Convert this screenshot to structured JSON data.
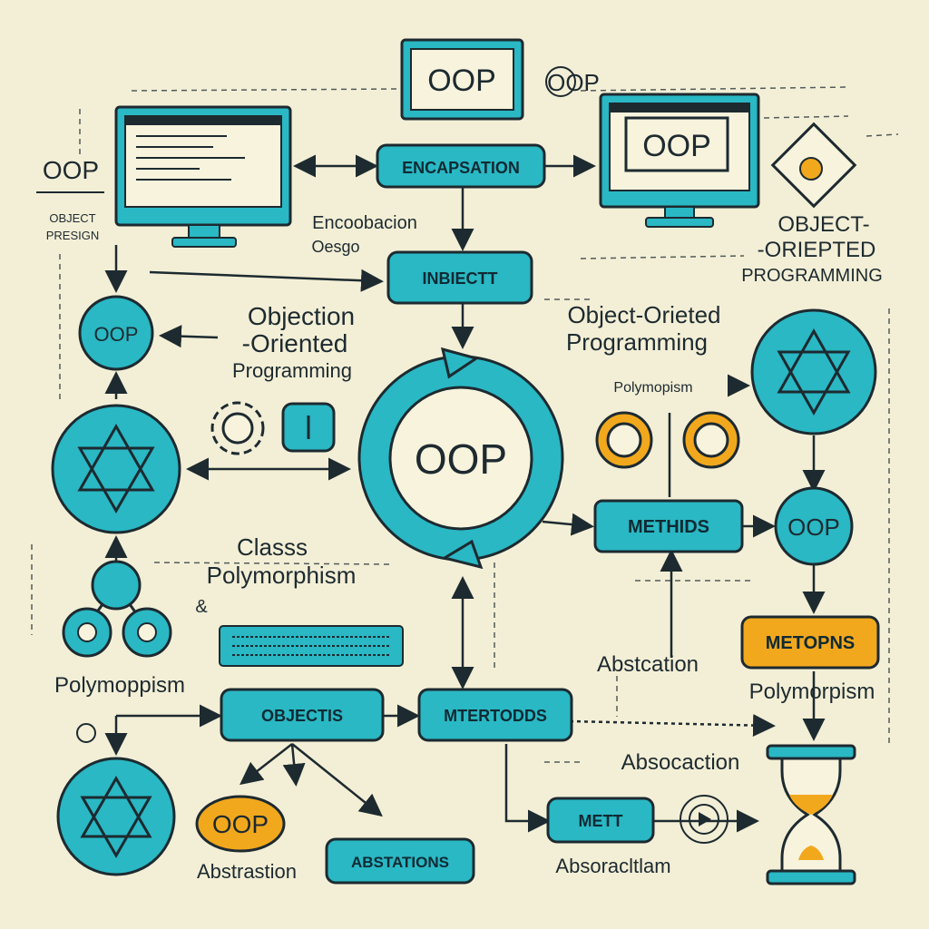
{
  "colors": {
    "background": "#f3efd6",
    "teal": "#29b8c4",
    "teal_dark": "#0f6f78",
    "orange": "#f2a81d",
    "ink": "#1d2a30"
  },
  "monitors": {
    "top_center": "OOP",
    "right": "OOP"
  },
  "top_small_label": "OOP",
  "left_top": {
    "title": "OOP",
    "line1": "OBJECT",
    "line2": "PRESIGN"
  },
  "encapsulation_pill": "ENCAPSATION",
  "encapsulation_caption": {
    "line1": "Encoobacion",
    "line2": "Oesgo"
  },
  "inbiectt_pill": "INBIECTT",
  "right_heading": {
    "line1": "OBJECT-",
    "line2": "-ORIEPTED",
    "line3": "PROGRAMMING"
  },
  "left_node_oop": "OOP",
  "objection_text": {
    "line1": "Objection",
    "line2": "-Oriented",
    "line3": "Programming"
  },
  "center_text": {
    "line1": "Object-Orieted",
    "line2": "Programming"
  },
  "center_circle": "OOP",
  "polymorphism_small": "Polymopism",
  "classes_text": {
    "line1": "Classs",
    "line2": "Polymorphism",
    "line3": "&"
  },
  "methids_pill": "METHIDS",
  "right_oop_circle": "OOP",
  "metopns_pill": "METOPNS",
  "polymoppism_left": "Polymoppism",
  "abstcation_text": "Abstcation",
  "polymorpism_right": "Polymorpism",
  "objects_pill": "OBJECTIS",
  "mtertodds_pill": "MTERTODDS",
  "absocaction_text": "Absocaction",
  "oop_orange": "OOP",
  "abstraction_caption": "Abstrastion",
  "abstations_pill": "ABSTATIONS",
  "mett_pill": "METT",
  "absoacltion_caption": "Absoracltlam"
}
